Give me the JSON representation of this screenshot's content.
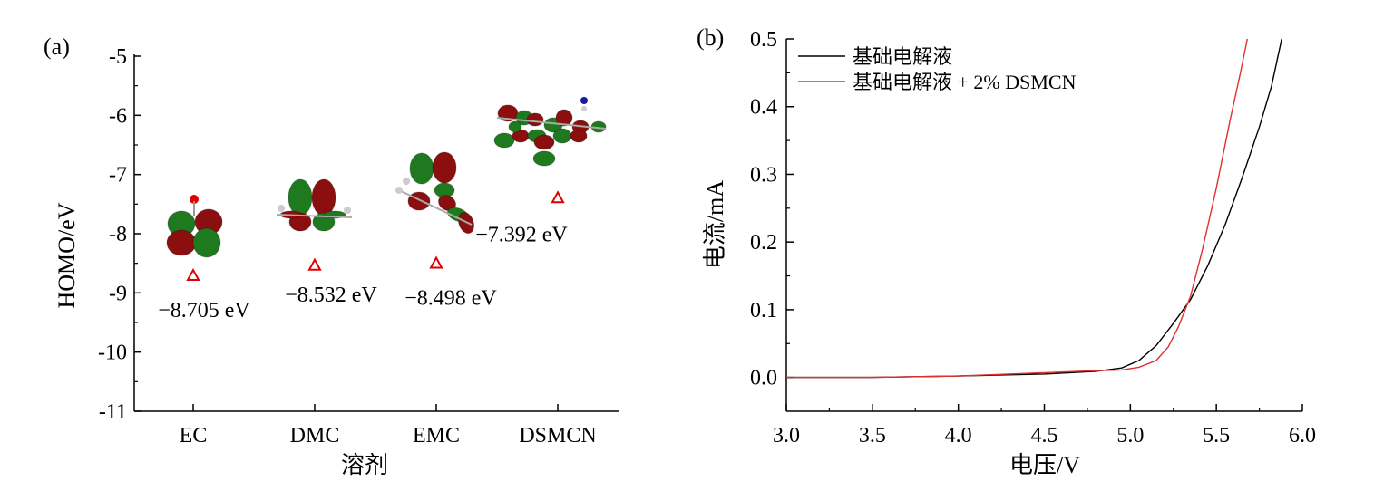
{
  "chart_data": [
    {
      "panel": "(a)",
      "type": "scatter",
      "xlabel": "溶剂",
      "ylabel": "HOMO/eV",
      "ylim": [
        -11,
        -5
      ],
      "yticks": [
        "-5",
        "-6",
        "-7",
        "-8",
        "-9",
        "-10",
        "-11"
      ],
      "categories": [
        "EC",
        "DMC",
        "EMC",
        "DSMCN"
      ],
      "values": [
        -8.705,
        -8.532,
        -8.498,
        -7.392
      ],
      "point_labels": [
        "−8.705 eV",
        "−8.532 eV",
        "−8.498 eV",
        "−7.392 eV"
      ],
      "marker": "open-triangle",
      "marker_color": "#e00000",
      "orbital_colors": {
        "positive": "#8b0f0f",
        "negative": "#1f7a1f"
      }
    },
    {
      "panel": "(b)",
      "type": "line",
      "xlabel": "电压/V",
      "ylabel": "电流/mA",
      "xlim": [
        3.0,
        6.0
      ],
      "ylim": [
        -0.05,
        0.5
      ],
      "xticks": [
        "3.0",
        "3.5",
        "4.0",
        "4.5",
        "5.0",
        "5.5",
        "6.0"
      ],
      "yticks": [
        "0.0",
        "0.1",
        "0.2",
        "0.3",
        "0.4",
        "0.5"
      ],
      "legend_position": "top-left",
      "series": [
        {
          "name": "基础电解液",
          "color": "#000000",
          "x": [
            3.0,
            3.5,
            4.0,
            4.5,
            4.8,
            4.95,
            5.05,
            5.15,
            5.25,
            5.35,
            5.45,
            5.55,
            5.65,
            5.75,
            5.82,
            5.88
          ],
          "y": [
            0.0,
            0.0,
            0.002,
            0.005,
            0.009,
            0.014,
            0.025,
            0.047,
            0.08,
            0.115,
            0.165,
            0.225,
            0.295,
            0.37,
            0.43,
            0.5
          ]
        },
        {
          "name": "基础电解液 + 2% DSMCN",
          "color": "#e03030",
          "x": [
            3.0,
            3.5,
            4.0,
            4.5,
            4.8,
            4.95,
            5.05,
            5.15,
            5.22,
            5.28,
            5.35,
            5.42,
            5.5,
            5.58,
            5.64,
            5.68
          ],
          "y": [
            0.0,
            0.0,
            0.002,
            0.007,
            0.01,
            0.011,
            0.015,
            0.025,
            0.045,
            0.075,
            0.12,
            0.19,
            0.28,
            0.38,
            0.45,
            0.5
          ]
        }
      ]
    }
  ]
}
